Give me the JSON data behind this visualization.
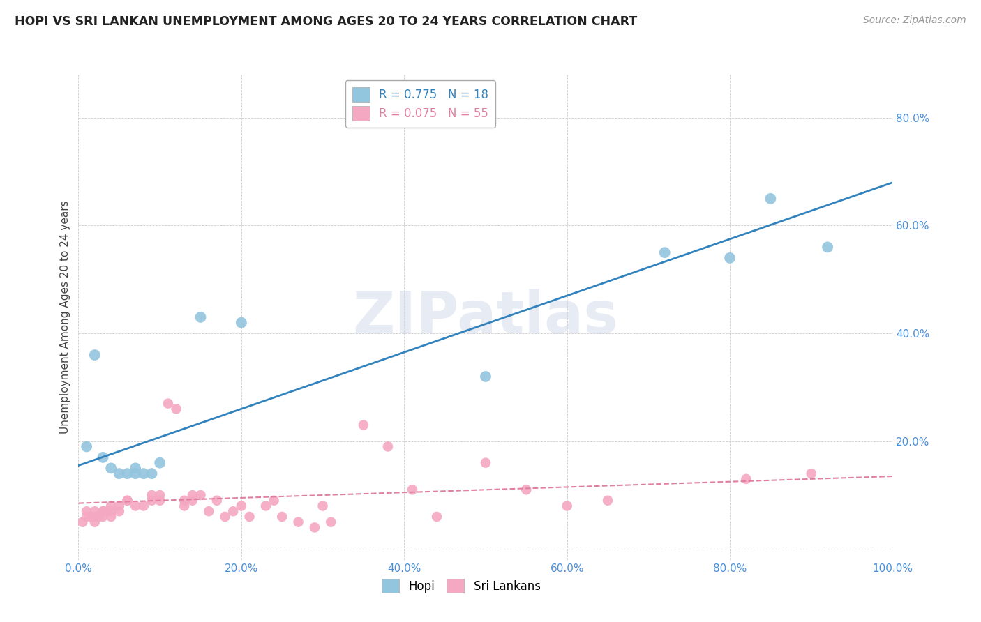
{
  "title": "HOPI VS SRI LANKAN UNEMPLOYMENT AMONG AGES 20 TO 24 YEARS CORRELATION CHART",
  "source": "Source: ZipAtlas.com",
  "ylabel": "Unemployment Among Ages 20 to 24 years",
  "xlim": [
    0.0,
    1.0
  ],
  "ylim": [
    -0.02,
    0.88
  ],
  "ytick_positions": [
    0.0,
    0.2,
    0.4,
    0.6,
    0.8
  ],
  "ytick_labels": [
    "",
    "20.0%",
    "40.0%",
    "60.0%",
    "80.0%"
  ],
  "xtick_positions": [
    0.0,
    0.2,
    0.4,
    0.6,
    0.8,
    1.0
  ],
  "xtick_labels": [
    "0.0%",
    "20.0%",
    "40.0%",
    "60.0%",
    "80.0%",
    "100.0%"
  ],
  "hopi_R": "0.775",
  "hopi_N": "18",
  "sri_R": "0.075",
  "sri_N": "55",
  "hopi_scatter_color": "#92c5de",
  "sri_scatter_color": "#f4a8c2",
  "hopi_line_color": "#3182bd",
  "sri_line_color": "#e07fa0",
  "watermark": "ZIPatlas",
  "hopi_scatter_x": [
    0.01,
    0.02,
    0.03,
    0.04,
    0.05,
    0.06,
    0.07,
    0.07,
    0.08,
    0.09,
    0.1,
    0.15,
    0.2,
    0.5,
    0.72,
    0.8,
    0.85,
    0.92
  ],
  "hopi_scatter_y": [
    0.19,
    0.36,
    0.17,
    0.15,
    0.14,
    0.14,
    0.15,
    0.14,
    0.14,
    0.14,
    0.16,
    0.43,
    0.42,
    0.32,
    0.55,
    0.54,
    0.65,
    0.56
  ],
  "sri_scatter_x": [
    0.005,
    0.01,
    0.01,
    0.015,
    0.02,
    0.02,
    0.02,
    0.025,
    0.03,
    0.03,
    0.03,
    0.035,
    0.04,
    0.04,
    0.04,
    0.05,
    0.05,
    0.06,
    0.06,
    0.07,
    0.08,
    0.09,
    0.09,
    0.1,
    0.1,
    0.11,
    0.12,
    0.13,
    0.13,
    0.14,
    0.14,
    0.15,
    0.16,
    0.17,
    0.18,
    0.19,
    0.2,
    0.21,
    0.23,
    0.24,
    0.25,
    0.27,
    0.29,
    0.3,
    0.31,
    0.35,
    0.38,
    0.41,
    0.44,
    0.5,
    0.55,
    0.6,
    0.65,
    0.82,
    0.9
  ],
  "sri_scatter_y": [
    0.05,
    0.06,
    0.07,
    0.06,
    0.06,
    0.07,
    0.05,
    0.06,
    0.07,
    0.07,
    0.06,
    0.07,
    0.07,
    0.06,
    0.08,
    0.07,
    0.08,
    0.09,
    0.09,
    0.08,
    0.08,
    0.1,
    0.09,
    0.09,
    0.1,
    0.27,
    0.26,
    0.09,
    0.08,
    0.1,
    0.09,
    0.1,
    0.07,
    0.09,
    0.06,
    0.07,
    0.08,
    0.06,
    0.08,
    0.09,
    0.06,
    0.05,
    0.04,
    0.08,
    0.05,
    0.23,
    0.19,
    0.11,
    0.06,
    0.16,
    0.11,
    0.08,
    0.09,
    0.13,
    0.14
  ],
  "hopi_line_x0": 0.0,
  "hopi_line_y0": 0.155,
  "hopi_line_x1": 1.0,
  "hopi_line_y1": 0.68,
  "sri_line_x0": 0.0,
  "sri_line_y0": 0.085,
  "sri_line_x1": 1.0,
  "sri_line_y1": 0.135
}
